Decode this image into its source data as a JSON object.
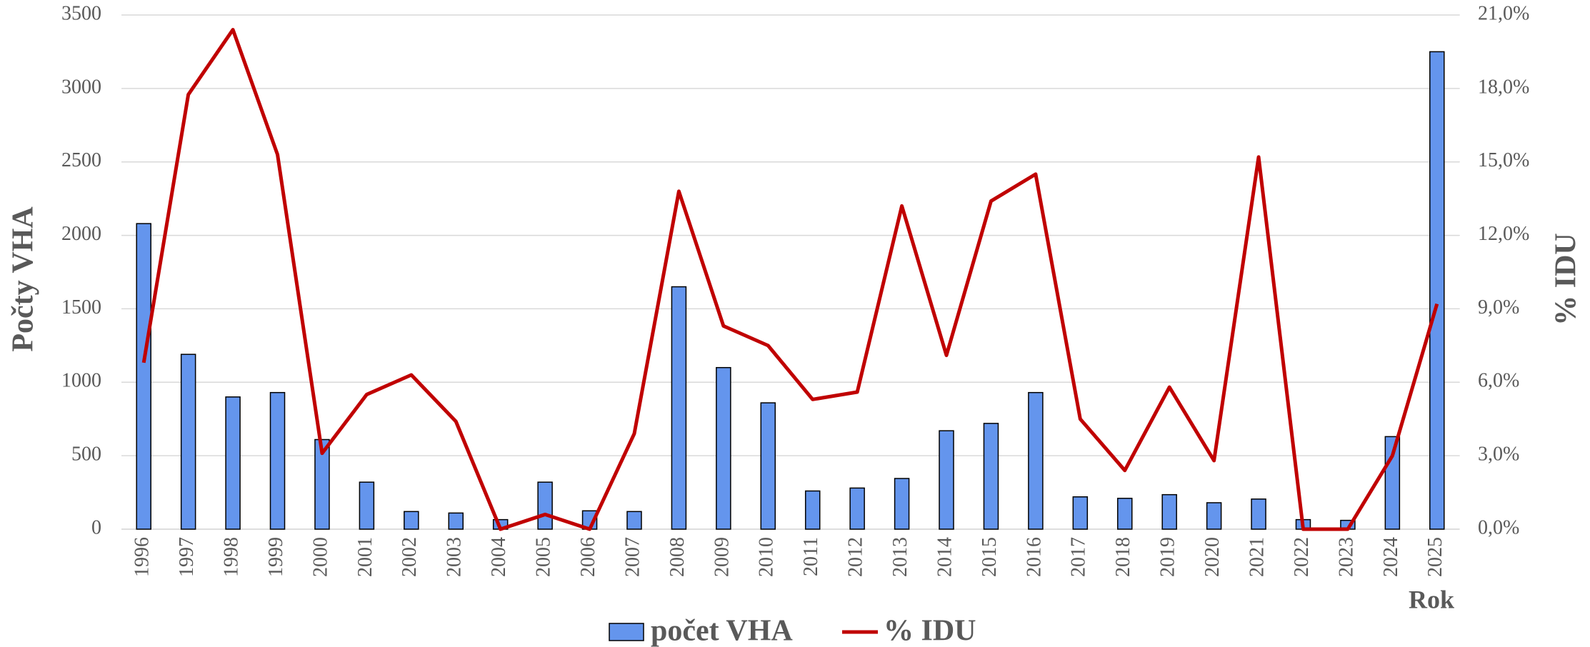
{
  "chart_data": {
    "type": "bar",
    "y_label": "Počty VHA",
    "y2_label": "% IDU",
    "x_label": "Rok",
    "categories": [
      "1996",
      "1997",
      "1998",
      "1999",
      "2000",
      "2001",
      "2002",
      "2003",
      "2004",
      "2005",
      "2006",
      "2007",
      "2008",
      "2009",
      "2010",
      "2011",
      "2012",
      "2013",
      "2014",
      "2015",
      "2016",
      "2017",
      "2018",
      "2019",
      "2020",
      "2021",
      "2022",
      "2023",
      "2024",
      "2025"
    ],
    "series": [
      {
        "name": "počet VHA",
        "type": "bar",
        "color": "#6495ed",
        "values": [
          2080,
          1190,
          900,
          930,
          610,
          320,
          120,
          110,
          65,
          320,
          125,
          120,
          1650,
          1100,
          860,
          260,
          280,
          345,
          670,
          720,
          930,
          220,
          210,
          235,
          180,
          205,
          65,
          60,
          630,
          3250
        ]
      },
      {
        "name": "% IDU",
        "type": "line",
        "axis": "y2",
        "color": "#c00000",
        "values": [
          6.8,
          17.75,
          20.4,
          15.3,
          3.1,
          5.5,
          6.3,
          4.4,
          0,
          0.6,
          0,
          3.9,
          13.8,
          8.3,
          7.5,
          5.3,
          5.6,
          13.2,
          7.1,
          13.4,
          14.5,
          4.5,
          2.4,
          5.8,
          2.8,
          15.2,
          0,
          0,
          3.0,
          9.2
        ]
      }
    ],
    "ylim": [
      0,
      3500
    ],
    "yticks": [
      0,
      500,
      1000,
      1500,
      2000,
      2500,
      3000,
      3500
    ],
    "y2lim": [
      0,
      21
    ],
    "y2ticks": [
      {
        "value": 0,
        "label": "0,0%"
      },
      {
        "value": 3,
        "label": "3,0%"
      },
      {
        "value": 6,
        "label": "6,0%"
      },
      {
        "value": 9,
        "label": "9,0%"
      },
      {
        "value": 12,
        "label": "12,0%"
      },
      {
        "value": 15,
        "label": "15,0%"
      },
      {
        "value": 18,
        "label": "18,0%"
      },
      {
        "value": 21,
        "label": "21,0%"
      }
    ],
    "grid": true,
    "legend": "bottom"
  }
}
